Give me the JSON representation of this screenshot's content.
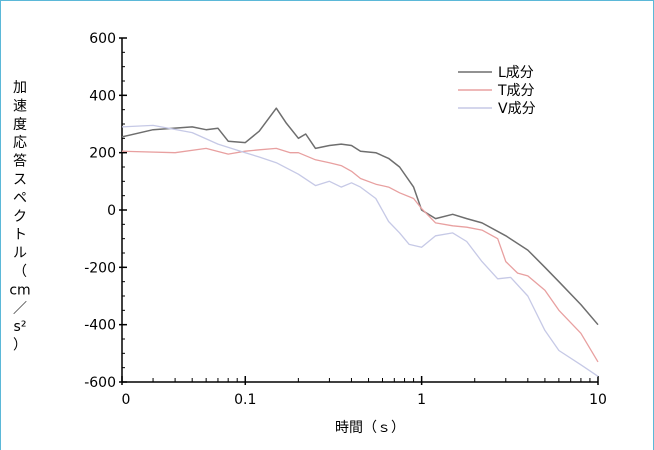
{
  "chart_data": {
    "type": "line",
    "xlabel": "時間（ｓ）",
    "ylabel_chars": [
      "加",
      "速",
      "度",
      "応",
      "答",
      "ス",
      "ペ",
      "ク",
      "ト",
      "ル",
      "（",
      "cm",
      "／",
      "s²",
      "）"
    ],
    "xscale": "log",
    "xlim": [
      0.02,
      10
    ],
    "ylim": [
      -600,
      600
    ],
    "x_ticks": [
      {
        "value": 0.02,
        "label": "0"
      },
      {
        "value": 0.1,
        "label": "0.1"
      },
      {
        "value": 1,
        "label": "1"
      },
      {
        "value": 10,
        "label": "10"
      }
    ],
    "y_ticks": [
      {
        "value": 600,
        "label": "600"
      },
      {
        "value": 400,
        "label": "400"
      },
      {
        "value": 200,
        "label": "200"
      },
      {
        "value": 0,
        "label": "0"
      },
      {
        "value": -200,
        "label": "-200"
      },
      {
        "value": -400,
        "label": "-400"
      },
      {
        "value": -600,
        "label": "-600"
      }
    ],
    "legend_position": "top-right",
    "series": [
      {
        "name": "L成分",
        "color": "#6e6e6e",
        "points": [
          [
            0.02,
            255
          ],
          [
            0.03,
            280
          ],
          [
            0.05,
            290
          ],
          [
            0.06,
            280
          ],
          [
            0.07,
            285
          ],
          [
            0.08,
            240
          ],
          [
            0.1,
            235
          ],
          [
            0.12,
            275
          ],
          [
            0.15,
            355
          ],
          [
            0.17,
            305
          ],
          [
            0.2,
            250
          ],
          [
            0.22,
            265
          ],
          [
            0.25,
            215
          ],
          [
            0.3,
            225
          ],
          [
            0.35,
            230
          ],
          [
            0.4,
            225
          ],
          [
            0.45,
            205
          ],
          [
            0.55,
            200
          ],
          [
            0.65,
            180
          ],
          [
            0.75,
            150
          ],
          [
            0.9,
            80
          ],
          [
            1.0,
            0
          ],
          [
            1.2,
            -30
          ],
          [
            1.5,
            -15
          ],
          [
            1.8,
            -30
          ],
          [
            2.2,
            -45
          ],
          [
            3,
            -90
          ],
          [
            4,
            -140
          ],
          [
            5,
            -200
          ],
          [
            6,
            -250
          ],
          [
            8,
            -330
          ],
          [
            10,
            -400
          ]
        ]
      },
      {
        "name": "T成分",
        "color": "#e8a0a0",
        "points": [
          [
            0.02,
            205
          ],
          [
            0.04,
            200
          ],
          [
            0.06,
            215
          ],
          [
            0.08,
            195
          ],
          [
            0.1,
            205
          ],
          [
            0.12,
            210
          ],
          [
            0.15,
            215
          ],
          [
            0.18,
            200
          ],
          [
            0.2,
            200
          ],
          [
            0.25,
            175
          ],
          [
            0.3,
            165
          ],
          [
            0.35,
            155
          ],
          [
            0.4,
            135
          ],
          [
            0.45,
            110
          ],
          [
            0.55,
            90
          ],
          [
            0.65,
            80
          ],
          [
            0.75,
            60
          ],
          [
            0.9,
            40
          ],
          [
            1.0,
            5
          ],
          [
            1.2,
            -45
          ],
          [
            1.5,
            -55
          ],
          [
            1.8,
            -60
          ],
          [
            2.2,
            -70
          ],
          [
            2.7,
            -100
          ],
          [
            3,
            -180
          ],
          [
            3.5,
            -220
          ],
          [
            4,
            -230
          ],
          [
            5,
            -280
          ],
          [
            6,
            -350
          ],
          [
            8,
            -430
          ],
          [
            10,
            -530
          ]
        ]
      },
      {
        "name": "V成分",
        "color": "#c6c9e6",
        "points": [
          [
            0.02,
            290
          ],
          [
            0.03,
            295
          ],
          [
            0.05,
            270
          ],
          [
            0.07,
            230
          ],
          [
            0.1,
            200
          ],
          [
            0.12,
            185
          ],
          [
            0.15,
            165
          ],
          [
            0.2,
            125
          ],
          [
            0.25,
            85
          ],
          [
            0.3,
            100
          ],
          [
            0.35,
            80
          ],
          [
            0.4,
            95
          ],
          [
            0.45,
            80
          ],
          [
            0.55,
            40
          ],
          [
            0.65,
            -40
          ],
          [
            0.75,
            -80
          ],
          [
            0.85,
            -120
          ],
          [
            1.0,
            -130
          ],
          [
            1.2,
            -90
          ],
          [
            1.5,
            -80
          ],
          [
            1.8,
            -110
          ],
          [
            2.2,
            -180
          ],
          [
            2.7,
            -240
          ],
          [
            3.2,
            -235
          ],
          [
            4,
            -300
          ],
          [
            5,
            -420
          ],
          [
            6,
            -490
          ],
          [
            8,
            -540
          ],
          [
            10,
            -580
          ]
        ]
      }
    ]
  }
}
